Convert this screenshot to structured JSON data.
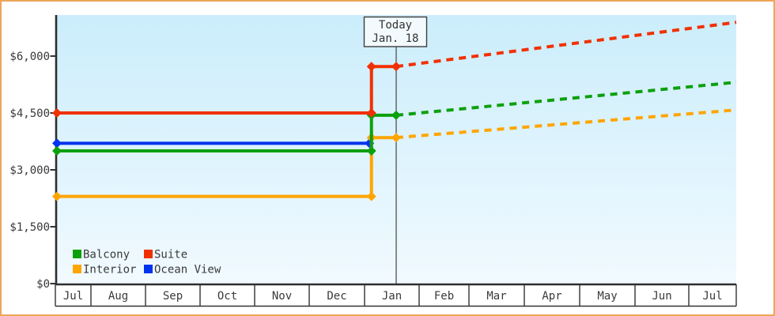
{
  "frame": {
    "border_color": "#eda65a"
  },
  "chart_data": {
    "type": "line",
    "title": "",
    "y_axis": {
      "tick_labels": [
        "$0",
        "$1,500",
        "$3,000",
        "$4,500",
        "$6,000"
      ],
      "tick_values": [
        0,
        1500,
        3000,
        4500,
        6000
      ],
      "visible_max": 7080,
      "grid": false
    },
    "x_axis": {
      "month_labels": [
        "Jul",
        "Aug",
        "Sep",
        "Oct",
        "Nov",
        "Dec",
        "Jan",
        "Feb",
        "Mar",
        "Apr",
        "May",
        "Jun",
        "Jul"
      ]
    },
    "today_marker": {
      "line1": "Today",
      "line2": "Jan. 18",
      "x_frac": 0.4993
    },
    "series": [
      {
        "name": "Ocean View",
        "color": "#0033ee",
        "start_value": 3700,
        "current_value": 3700,
        "forecast_end_value": null,
        "solid_points": [
          [
            0,
            3700
          ],
          [
            0.46,
            3700
          ]
        ],
        "dotted_points": [],
        "markers": [
          [
            0,
            3700
          ],
          [
            0.46,
            3700
          ]
        ]
      },
      {
        "name": "Interior",
        "color": "#ffa500",
        "start_value": 2300,
        "current_value": 3850,
        "forecast_end_value": 4580,
        "solid_points": [
          [
            0,
            2300
          ],
          [
            0.463,
            2300
          ],
          [
            0.463,
            3850
          ],
          [
            0.4993,
            3850
          ]
        ],
        "dotted_points": [
          [
            0.4993,
            3850
          ],
          [
            1,
            4580
          ]
        ],
        "markers": [
          [
            0,
            2300
          ],
          [
            0.463,
            2300
          ],
          [
            0.463,
            3850
          ],
          [
            0.4993,
            3850
          ]
        ]
      },
      {
        "name": "Balcony",
        "color": "#0da00d",
        "start_value": 3500,
        "current_value": 4440,
        "forecast_end_value": 5310,
        "solid_points": [
          [
            0,
            3500
          ],
          [
            0.463,
            3500
          ],
          [
            0.463,
            4440
          ],
          [
            0.4993,
            4440
          ]
        ],
        "dotted_points": [
          [
            0.4993,
            4440
          ],
          [
            1,
            5310
          ]
        ],
        "markers": [
          [
            0,
            3500
          ],
          [
            0.463,
            3500
          ],
          [
            0.463,
            4440
          ],
          [
            0.4993,
            4440
          ]
        ]
      },
      {
        "name": "Suite",
        "color": "#f13000",
        "start_value": 4500,
        "current_value": 5725,
        "forecast_end_value": 6890,
        "solid_points": [
          [
            0,
            4500
          ],
          [
            0.463,
            4500
          ],
          [
            0.463,
            5725
          ],
          [
            0.4993,
            5725
          ]
        ],
        "dotted_points": [
          [
            0.4993,
            5725
          ],
          [
            1,
            6890
          ]
        ],
        "markers": [
          [
            0,
            4500
          ],
          [
            0.463,
            4500
          ],
          [
            0.463,
            5725
          ],
          [
            0.4993,
            5725
          ]
        ]
      }
    ],
    "legend": {
      "position": "bottom-left",
      "items": [
        {
          "label": "Balcony",
          "color": "#0da00d"
        },
        {
          "label": "Suite",
          "color": "#f13000"
        },
        {
          "label": "Interior",
          "color": "#ffa500"
        },
        {
          "label": "Ocean View",
          "color": "#0033ee"
        }
      ]
    }
  }
}
